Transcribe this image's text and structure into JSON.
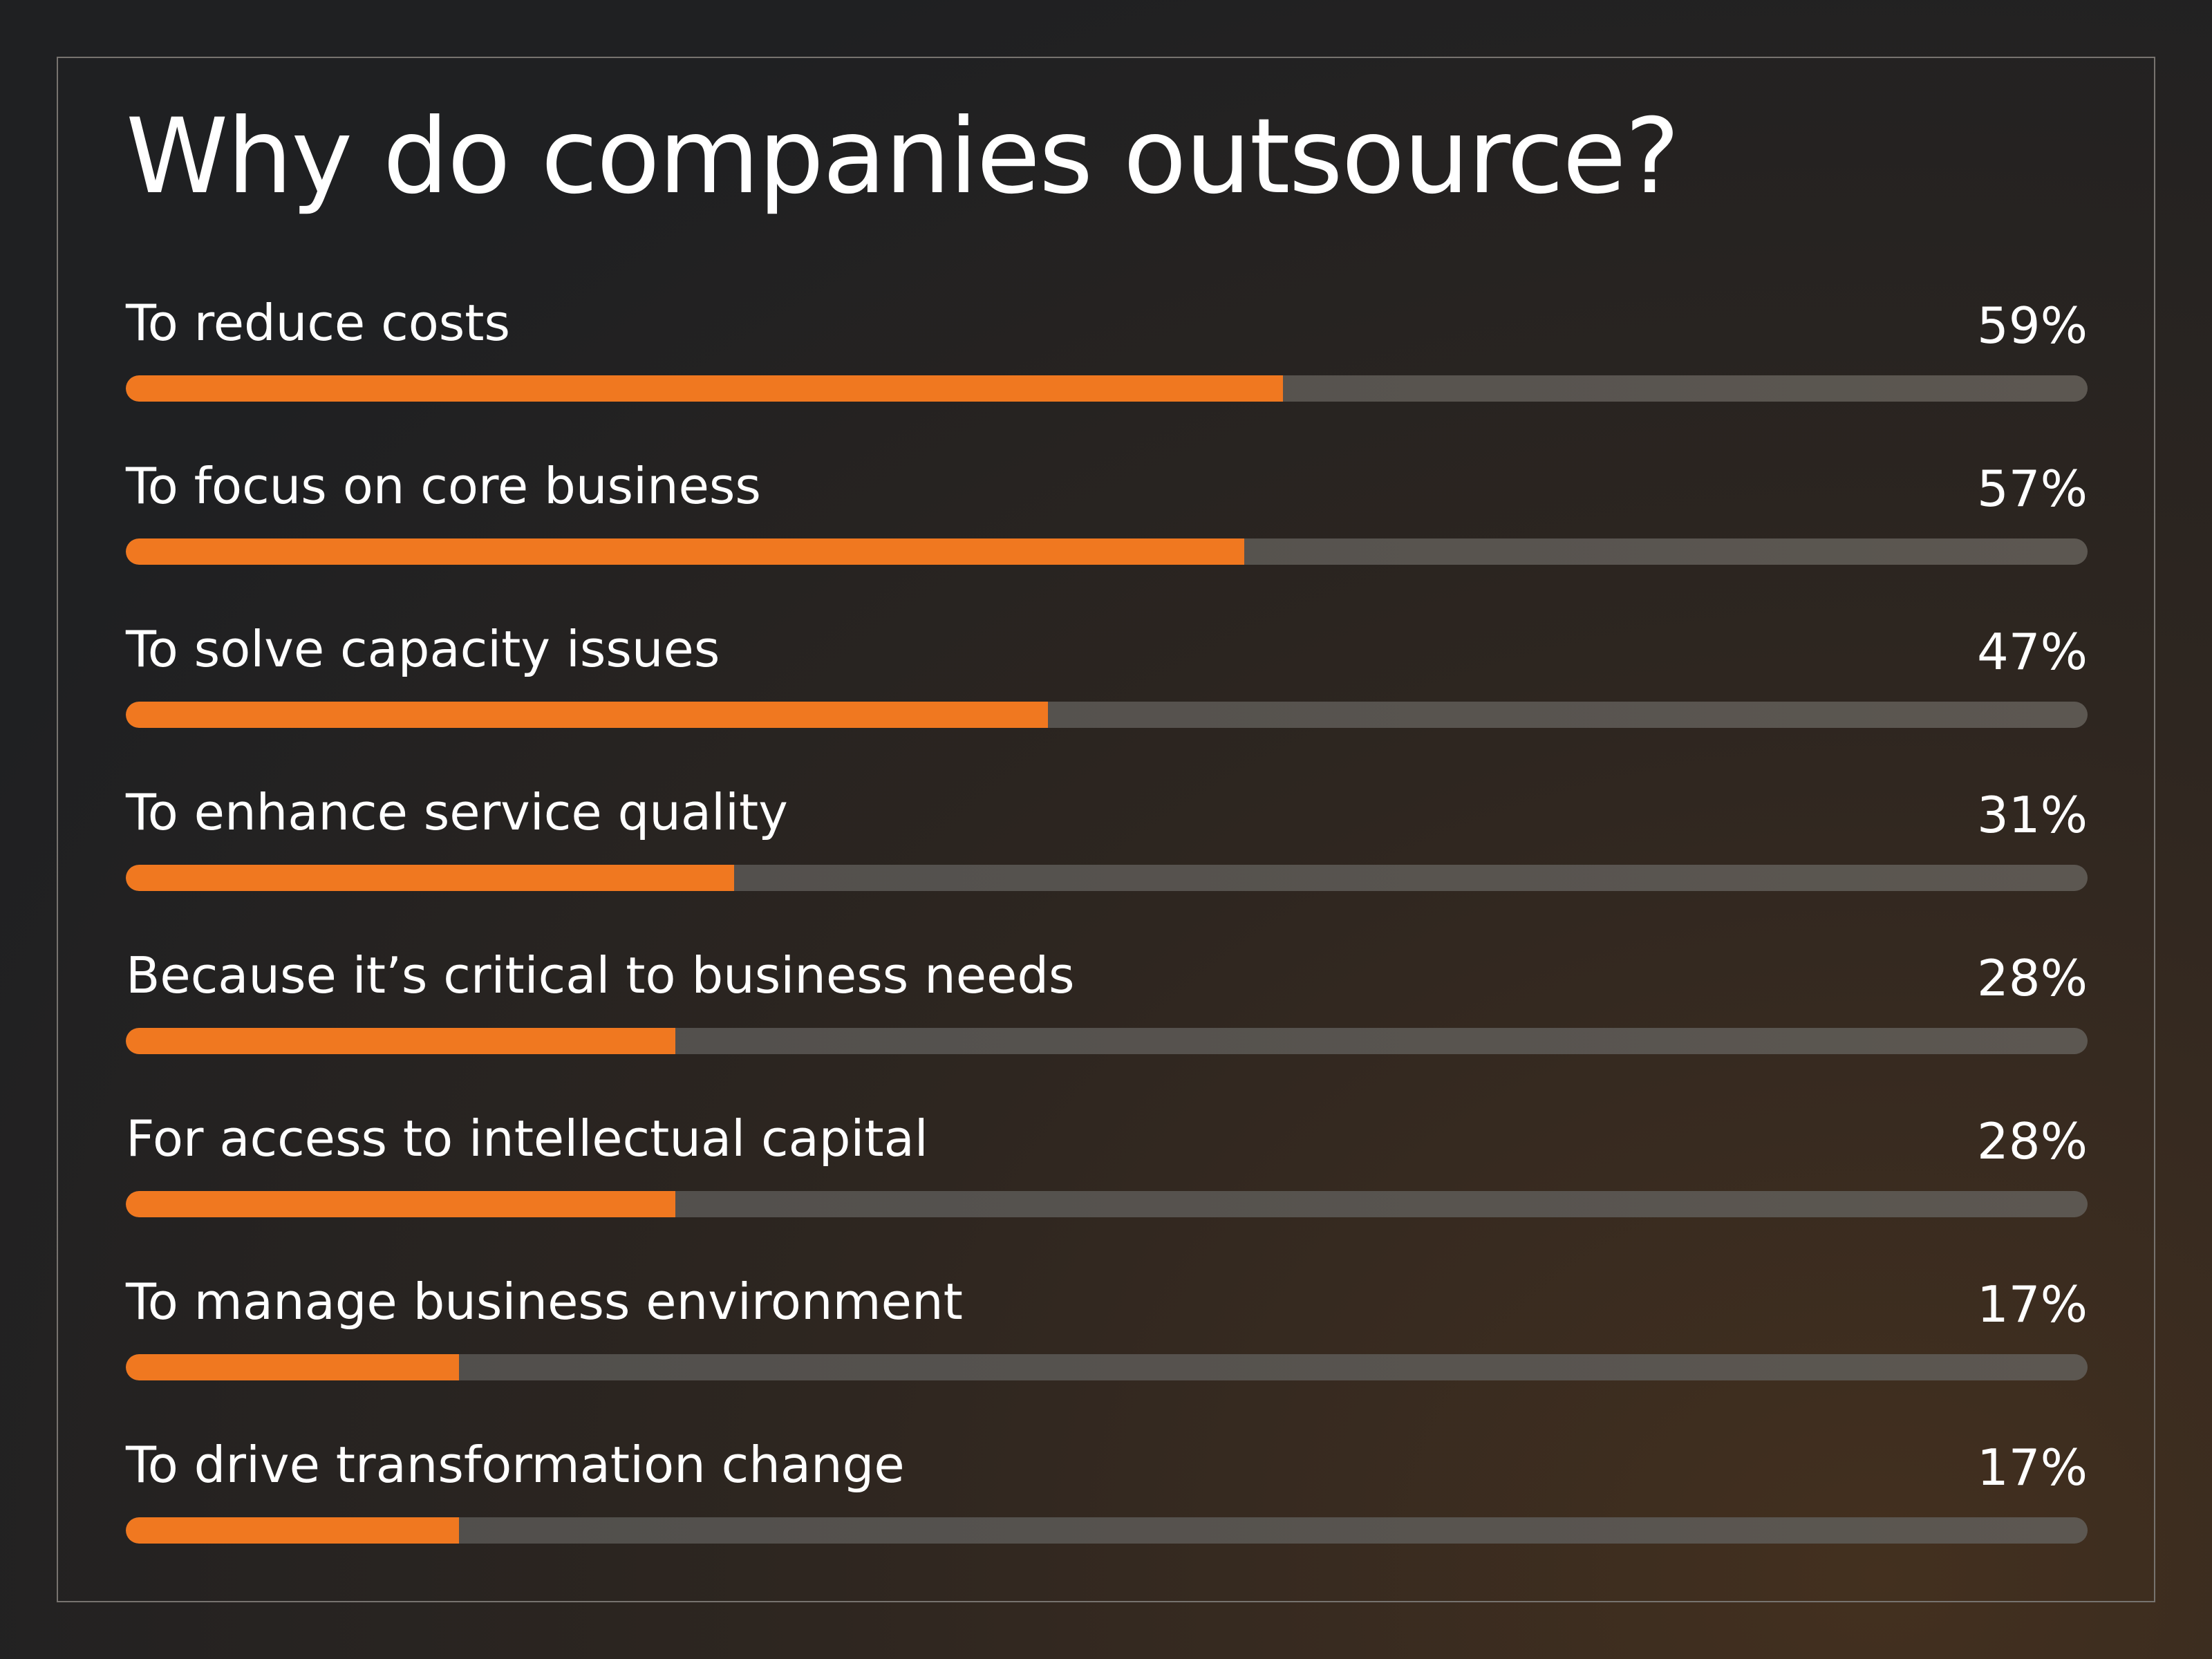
{
  "chart_data": {
    "type": "bar",
    "orientation": "horizontal",
    "title": "Why do companies outsource?",
    "categories": [
      "To reduce costs",
      "To focus on core business",
      "To solve capacity issues",
      "To enhance service quality",
      "Because it’s critical to business needs",
      "For access to intellectual capital",
      "To manage business environment",
      "To drive transformation change"
    ],
    "values": [
      59,
      57,
      47,
      31,
      28,
      28,
      17,
      17
    ],
    "value_labels": [
      "59%",
      "57%",
      "47%",
      "31%",
      "28%",
      "28%",
      "17%",
      "17%"
    ],
    "xlim": [
      0,
      100
    ],
    "grid": false,
    "colors": {
      "fill": "#f07820",
      "track": "#55514c",
      "background": "#1f2022",
      "accent_glow": "#43301f"
    }
  }
}
